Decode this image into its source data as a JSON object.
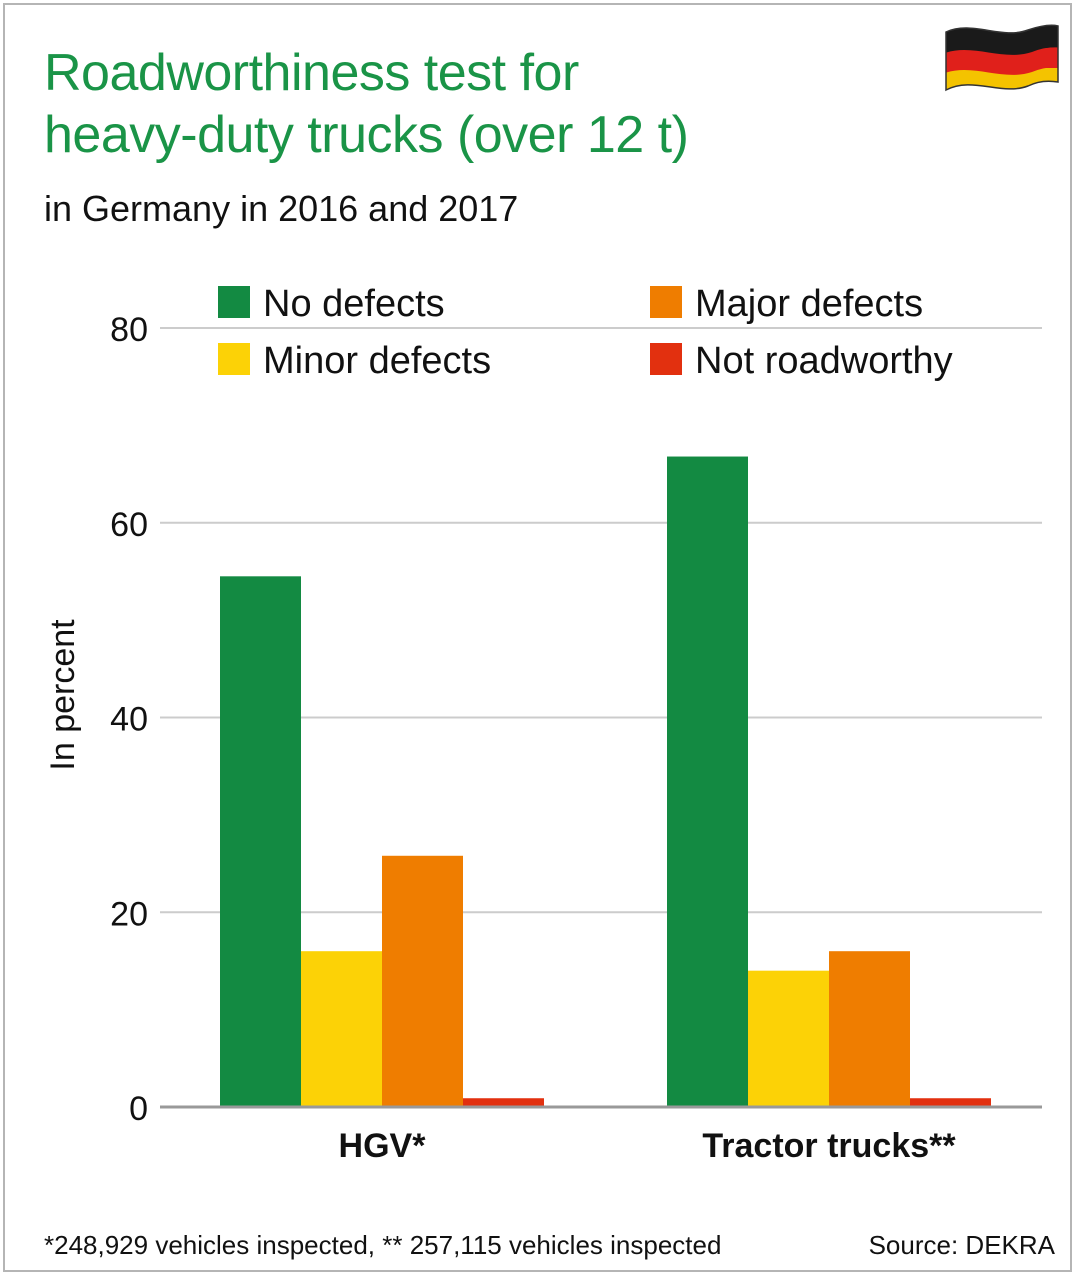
{
  "header": {
    "title_line1": "Roadworthiness test for",
    "title_line2": "heavy-duty trucks (over 12 t)",
    "subtitle": "in Germany in 2016 and 2017"
  },
  "footer": {
    "footnote": "*248,929 vehicles inspected, ** 257,115 vehicles inspected",
    "source": "Source: DEKRA"
  },
  "icons": {
    "flag": "germany-flag-icon"
  },
  "colors": {
    "title": "#1a9447",
    "no_defects": "#138a42",
    "minor_defects": "#fcd206",
    "major_defects": "#ef7d00",
    "not_roadworthy": "#e2300f",
    "grid": "#cccccc"
  },
  "chart_data": {
    "type": "bar",
    "categories": [
      "HGV*",
      "Tractor trucks**"
    ],
    "series": [
      {
        "name": "No defects",
        "values": [
          54.5,
          66.8
        ],
        "color": "#138a42"
      },
      {
        "name": "Minor defects",
        "values": [
          16.0,
          14.0
        ],
        "color": "#fcd206"
      },
      {
        "name": "Major defects",
        "values": [
          25.8,
          16.0
        ],
        "color": "#ef7d00"
      },
      {
        "name": "Not roadworthy",
        "values": [
          0.9,
          0.9
        ],
        "color": "#e2300f"
      }
    ],
    "ylabel": "In percent",
    "ylim": [
      0,
      80
    ],
    "yticks": [
      "0",
      "20",
      "40",
      "60",
      "80"
    ],
    "grid": true,
    "legend_position": "top"
  }
}
